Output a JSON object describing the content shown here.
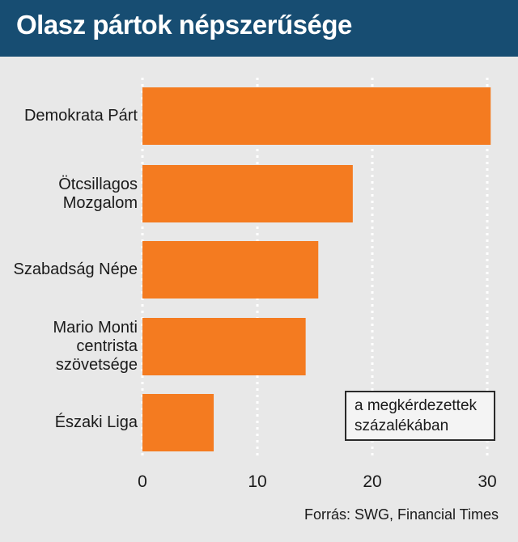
{
  "header": {
    "title": "Olasz pártok népszerűsége"
  },
  "chart_data": {
    "type": "bar",
    "orientation": "horizontal",
    "title": "Olasz pártok népszerűsége",
    "categories": [
      "Demokrata Párt",
      "Ötcsillagos\nMozgalom",
      "Szabadság Népe",
      "Mario Monti\ncentrista\nszövetsége",
      "Északi Liga"
    ],
    "values": [
      30.3,
      18.3,
      15.3,
      14.2,
      6.2
    ],
    "xlim": [
      0,
      32
    ],
    "xticks": [
      0,
      10,
      20,
      30
    ],
    "grid": true,
    "bar_color": "#f47b20",
    "legend_note": "a megkérdezettek\nszázalékában",
    "source": "Forrás: SWG, Financial Times"
  },
  "colors": {
    "header_bg": "#174d72",
    "background": "#e8e8e8",
    "bar": "#f47b20"
  }
}
